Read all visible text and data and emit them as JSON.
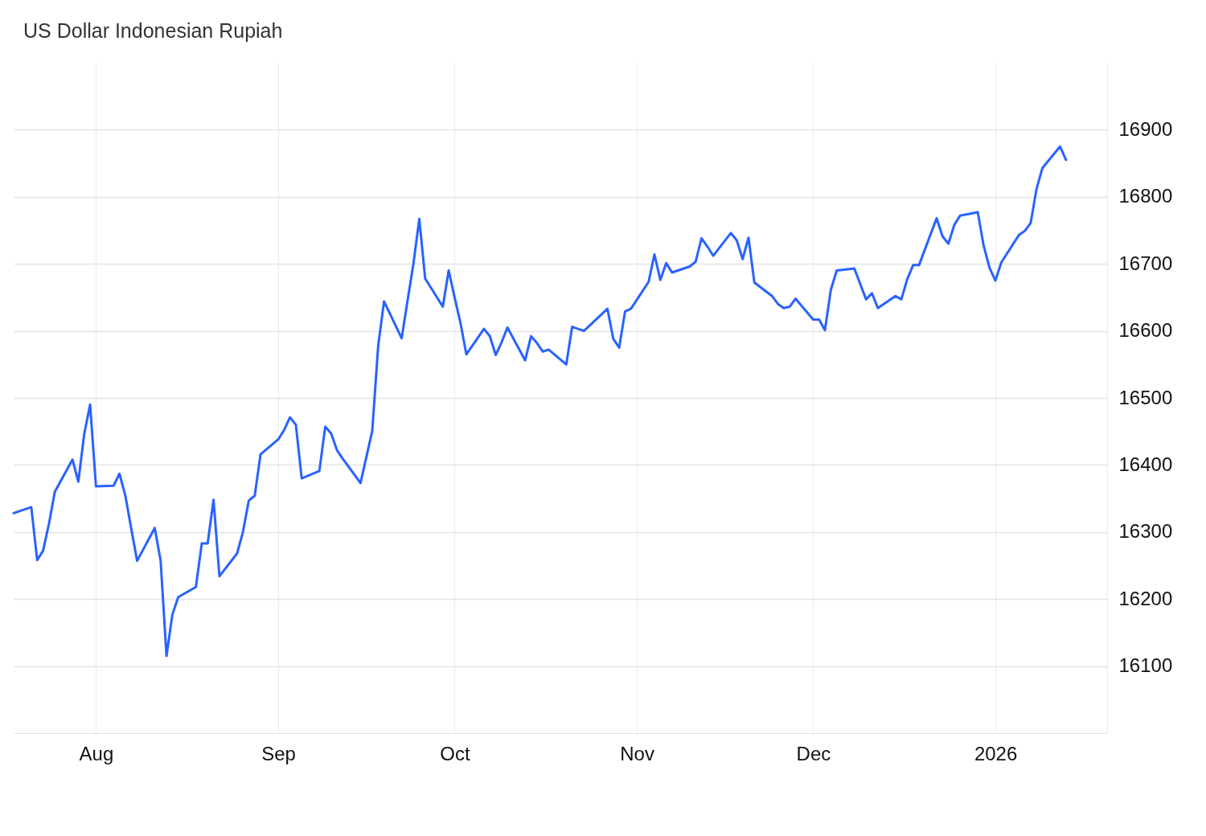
{
  "chart_data": {
    "type": "line",
    "title": "US Dollar Indonesian Rupiah",
    "x": [
      "2025-07-18",
      "2025-07-21",
      "2025-07-22",
      "2025-07-23",
      "2025-07-24",
      "2025-07-25",
      "2025-07-28",
      "2025-07-29",
      "2025-07-30",
      "2025-07-31",
      "2025-08-01",
      "2025-08-04",
      "2025-08-05",
      "2025-08-06",
      "2025-08-07",
      "2025-08-08",
      "2025-08-11",
      "2025-08-12",
      "2025-08-13",
      "2025-08-14",
      "2025-08-15",
      "2025-08-18",
      "2025-08-19",
      "2025-08-20",
      "2025-08-21",
      "2025-08-22",
      "2025-08-25",
      "2025-08-26",
      "2025-08-27",
      "2025-08-28",
      "2025-08-29",
      "2025-09-01",
      "2025-09-02",
      "2025-09-03",
      "2025-09-04",
      "2025-09-05",
      "2025-09-08",
      "2025-09-09",
      "2025-09-10",
      "2025-09-11",
      "2025-09-12",
      "2025-09-15",
      "2025-09-16",
      "2025-09-17",
      "2025-09-18",
      "2025-09-19",
      "2025-09-22",
      "2025-09-23",
      "2025-09-24",
      "2025-09-25",
      "2025-09-26",
      "2025-09-29",
      "2025-09-30",
      "2025-10-01",
      "2025-10-02",
      "2025-10-03",
      "2025-10-06",
      "2025-10-07",
      "2025-10-08",
      "2025-10-09",
      "2025-10-10",
      "2025-10-13",
      "2025-10-14",
      "2025-10-15",
      "2025-10-16",
      "2025-10-17",
      "2025-10-20",
      "2025-10-21",
      "2025-10-22",
      "2025-10-23",
      "2025-10-24",
      "2025-10-27",
      "2025-10-28",
      "2025-10-29",
      "2025-10-30",
      "2025-10-31",
      "2025-11-03",
      "2025-11-04",
      "2025-11-05",
      "2025-11-06",
      "2025-11-07",
      "2025-11-10",
      "2025-11-11",
      "2025-11-12",
      "2025-11-13",
      "2025-11-14",
      "2025-11-17",
      "2025-11-18",
      "2025-11-19",
      "2025-11-20",
      "2025-11-21",
      "2025-11-24",
      "2025-11-25",
      "2025-11-26",
      "2025-11-27",
      "2025-11-28",
      "2025-12-01",
      "2025-12-02",
      "2025-12-03",
      "2025-12-04",
      "2025-12-05",
      "2025-12-08",
      "2025-12-09",
      "2025-12-10",
      "2025-12-11",
      "2025-12-12",
      "2025-12-15",
      "2025-12-16",
      "2025-12-17",
      "2025-12-18",
      "2025-12-19",
      "2025-12-22",
      "2025-12-23",
      "2025-12-24",
      "2025-12-25",
      "2025-12-26",
      "2025-12-29",
      "2025-12-30",
      "2025-12-31",
      "2026-01-01",
      "2026-01-02",
      "2026-01-05",
      "2026-01-06",
      "2026-01-07",
      "2026-01-08",
      "2026-01-09",
      "2026-01-12",
      "2026-01-13"
    ],
    "series": [
      {
        "color": "#2962ff",
        "values": [
          16328,
          16337,
          16258,
          16272,
          16312,
          16360,
          16408,
          16375,
          16446,
          16490,
          16368,
          16369,
          16387,
          16354,
          16305,
          16257,
          16306,
          16257,
          16115,
          16177,
          16203,
          16218,
          16283,
          16283,
          16348,
          16234,
          16268,
          16300,
          16347,
          16354,
          16416,
          16438,
          16452,
          16471,
          16460,
          16380,
          16391,
          16457,
          16447,
          16422,
          16409,
          16373,
          16412,
          16451,
          16577,
          16644,
          16589,
          16645,
          16700,
          16767,
          16678,
          16636,
          16690,
          16650,
          16612,
          16565,
          16603,
          16592,
          16564,
          16583,
          16605,
          16556,
          16592,
          16582,
          16569,
          16572,
          16550,
          16606,
          16603,
          16600,
          16608,
          16633,
          16588,
          16575,
          16629,
          16633,
          16673,
          16714,
          16676,
          16701,
          16687,
          16696,
          16703,
          16738,
          16726,
          16712,
          16746,
          16735,
          16707,
          16739,
          16672,
          16652,
          16640,
          16634,
          16636,
          16648,
          16617,
          16617,
          16601,
          16661,
          16690,
          16693,
          16670,
          16647,
          16656,
          16634,
          16652,
          16647,
          16677,
          16698,
          16698,
          16768,
          16741,
          16730,
          16758,
          16772,
          16777,
          16727,
          16694,
          16675,
          16702,
          16743,
          16749,
          16761,
          16812,
          16843,
          16875,
          16855
        ]
      }
    ],
    "xlim": [
      "2025-07-18",
      "2026-01-20"
    ],
    "xticks": [
      {
        "value": "2025-08-01",
        "label": "Aug"
      },
      {
        "value": "2025-09-01",
        "label": "Sep"
      },
      {
        "value": "2025-10-01",
        "label": "Oct"
      },
      {
        "value": "2025-11-01",
        "label": "Nov"
      },
      {
        "value": "2025-12-01",
        "label": "Dec"
      },
      {
        "value": "2026-01-01",
        "label": "2026"
      }
    ],
    "ylim": [
      16000,
      17000
    ],
    "yticks": [
      16100,
      16200,
      16300,
      16400,
      16500,
      16600,
      16700,
      16800,
      16900
    ],
    "grid": true
  }
}
